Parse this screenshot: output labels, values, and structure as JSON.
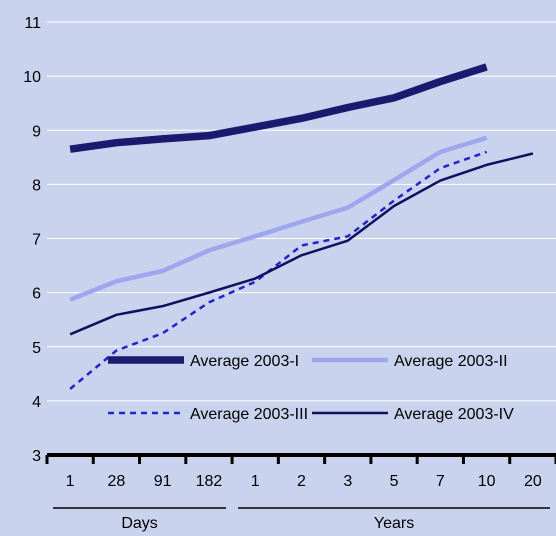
{
  "chart_data": {
    "type": "line",
    "categories": [
      "1",
      "28",
      "91",
      "182",
      "1",
      "2",
      "3",
      "5",
      "7",
      "10",
      "20"
    ],
    "category_groups": [
      {
        "label": "Days",
        "categories": [
          "1",
          "28",
          "91",
          "182"
        ]
      },
      {
        "label": "Years",
        "categories": [
          "1",
          "2",
          "3",
          "5",
          "7",
          "10",
          "20"
        ]
      }
    ],
    "ylim": [
      3,
      11
    ],
    "yticks": [
      3,
      4,
      5,
      6,
      7,
      8,
      9,
      10,
      11
    ],
    "grid": true,
    "legend_position": "inside-bottom",
    "series": [
      {
        "name": "Average 2003-I",
        "color": "#1a1a6e",
        "style": "thick",
        "values": [
          8.65,
          8.77,
          8.84,
          8.9,
          9.06,
          9.22,
          9.42,
          9.6,
          9.9,
          10.17,
          null
        ]
      },
      {
        "name": "Average 2003-II",
        "color": "#9ea6ee",
        "style": "medium",
        "values": [
          5.87,
          6.21,
          6.4,
          6.78,
          7.04,
          7.31,
          7.57,
          8.08,
          8.6,
          8.86,
          null
        ]
      },
      {
        "name": "Average 2003-III",
        "color": "#2323c8",
        "style": "dashed",
        "values": [
          4.22,
          4.93,
          5.25,
          5.82,
          6.2,
          6.87,
          7.04,
          7.7,
          8.3,
          8.6,
          null
        ]
      },
      {
        "name": "Average 2003-IV",
        "color": "#10105e",
        "style": "thin",
        "values": [
          5.23,
          5.59,
          5.75,
          6.0,
          6.26,
          6.69,
          6.96,
          7.6,
          8.07,
          8.36,
          8.57
        ]
      }
    ]
  }
}
